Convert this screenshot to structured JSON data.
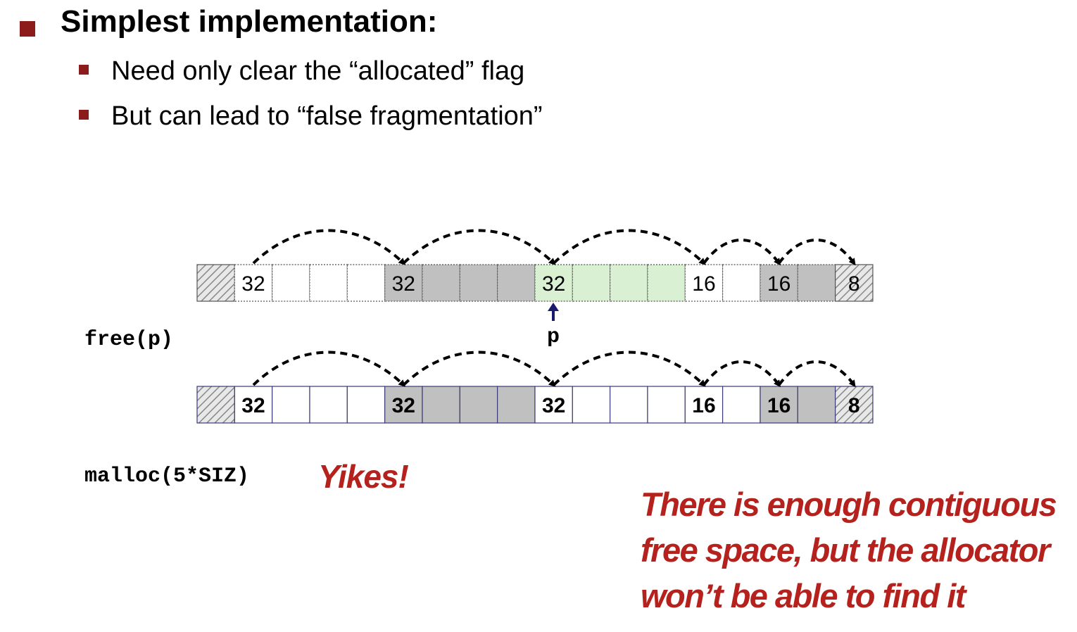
{
  "heading": "Simplest implementation:",
  "bullets": [
    "Need only clear the “allocated” flag",
    "But can lead to “false fragmentation”"
  ],
  "code": {
    "free": "free(p)",
    "malloc": "malloc(5*SIZ)",
    "pointer": "p"
  },
  "exclaim": "Yikes!",
  "note_lines": [
    "There is enough contiguous",
    "free space, but the allocator",
    "won’t be able to find it"
  ],
  "colors": {
    "accent": "#8c1b1b",
    "alert": "#b5211c",
    "allocated": "#c0c0c0",
    "freed_highlight": "#d9f0d2",
    "pointer_arrow": "#1a1a6e"
  },
  "heaps": [
    {
      "name": "before-free",
      "cells": [
        {
          "kind": "pad"
        },
        {
          "label": "32",
          "fill": "white"
        },
        {
          "fill": "white"
        },
        {
          "fill": "white"
        },
        {
          "fill": "white"
        },
        {
          "label": "32",
          "fill": "gray"
        },
        {
          "fill": "gray"
        },
        {
          "fill": "gray"
        },
        {
          "fill": "gray"
        },
        {
          "label": "32",
          "fill": "green"
        },
        {
          "fill": "green"
        },
        {
          "fill": "green"
        },
        {
          "fill": "green"
        },
        {
          "label": "16",
          "fill": "white"
        },
        {
          "fill": "white"
        },
        {
          "label": "16",
          "fill": "gray"
        },
        {
          "fill": "gray"
        },
        {
          "label": "8",
          "kind": "pad"
        }
      ],
      "bold_labels": false
    },
    {
      "name": "after-free",
      "cells": [
        {
          "kind": "pad"
        },
        {
          "label": "32",
          "fill": "white"
        },
        {
          "fill": "white"
        },
        {
          "fill": "white"
        },
        {
          "fill": "white"
        },
        {
          "label": "32",
          "fill": "gray"
        },
        {
          "fill": "gray"
        },
        {
          "fill": "gray"
        },
        {
          "fill": "gray"
        },
        {
          "label": "32",
          "fill": "white"
        },
        {
          "fill": "white"
        },
        {
          "fill": "white"
        },
        {
          "fill": "white"
        },
        {
          "label": "16",
          "fill": "white"
        },
        {
          "fill": "white"
        },
        {
          "label": "16",
          "fill": "gray"
        },
        {
          "fill": "gray"
        },
        {
          "label": "8",
          "kind": "pad"
        }
      ],
      "bold_labels": true
    }
  ]
}
